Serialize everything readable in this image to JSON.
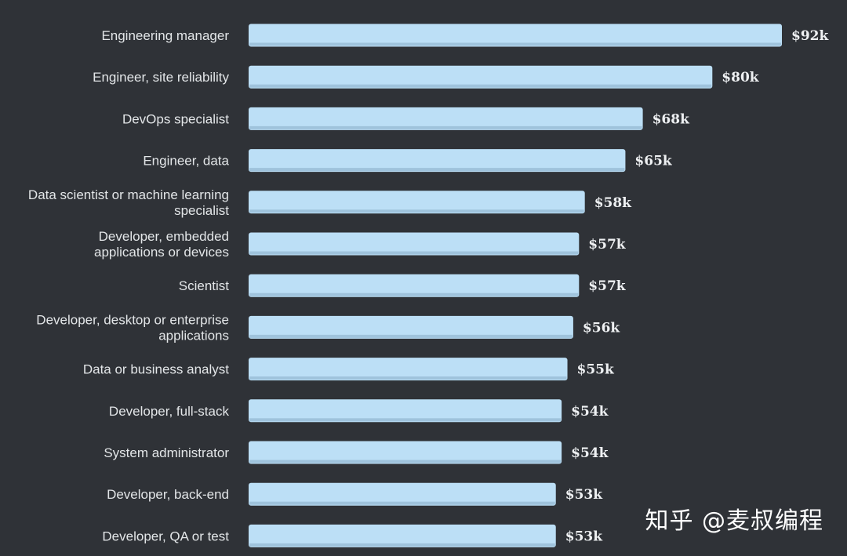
{
  "chart_data": {
    "type": "bar",
    "orientation": "horizontal",
    "title": "",
    "xlabel": "",
    "ylabel": "",
    "xlim": [
      0,
      92
    ],
    "grid": false,
    "categories": [
      "Engineering manager",
      "Engineer, site reliability",
      "DevOps specialist",
      "Engineer, data",
      "Data scientist or machine learning specialist",
      "Developer, embedded applications or devices",
      "Scientist",
      "Developer, desktop or enterprise applications",
      "Data or business analyst",
      "Developer, full-stack",
      "System administrator",
      "Developer, back-end",
      "Developer, QA or test"
    ],
    "category_lines": [
      [
        "Engineering manager"
      ],
      [
        "Engineer, site reliability"
      ],
      [
        "DevOps specialist"
      ],
      [
        "Engineer, data"
      ],
      [
        "Data scientist or machine learning",
        "specialist"
      ],
      [
        "Developer, embedded",
        "applications or devices"
      ],
      [
        "Scientist"
      ],
      [
        "Developer, desktop or enterprise",
        "applications"
      ],
      [
        "Data or business analyst"
      ],
      [
        "Developer, full-stack"
      ],
      [
        "System administrator"
      ],
      [
        "Developer, back-end"
      ],
      [
        "Developer, QA or test"
      ]
    ],
    "values": [
      92,
      80,
      68,
      65,
      58,
      57,
      57,
      56,
      55,
      54,
      54,
      53,
      53
    ],
    "value_labels": [
      "$92k",
      "$80k",
      "$68k",
      "$65k",
      "$58k",
      "$57k",
      "$57k",
      "$56k",
      "$55k",
      "$54k",
      "$54k",
      "$53k",
      "$53k"
    ],
    "colors": {
      "background": "#2f3237",
      "bar": "#bcdff6",
      "bar_shade": "#9fc3dc",
      "category_text": "#e3e6e8",
      "value_text": "#eef0f2"
    }
  },
  "watermark": "知乎 @麦叔编程"
}
